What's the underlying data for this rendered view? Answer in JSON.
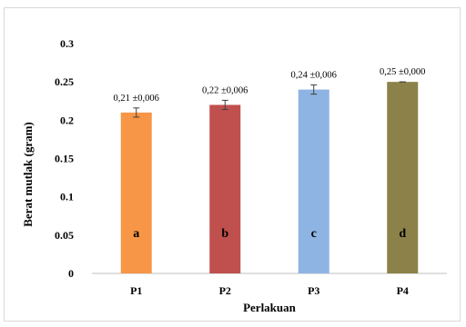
{
  "chart_data": {
    "type": "bar",
    "categories": [
      "P1",
      "P2",
      "P3",
      "P4"
    ],
    "values": [
      0.21,
      0.22,
      0.24,
      0.25
    ],
    "errors": [
      0.006,
      0.006,
      0.006,
      0.0
    ],
    "value_labels": [
      "0,21 ±0,006",
      "0,22 ±0,006",
      "0,24 ±0,006",
      "0,25 ±0,000"
    ],
    "significance_letters": [
      "a",
      "b",
      "c",
      "d"
    ],
    "colors": [
      "#F79646",
      "#C0504D",
      "#8EB4E3",
      "#8C8148"
    ],
    "title": "",
    "xlabel": "Perlakuan",
    "ylabel": "Berat mutlak (gram)",
    "ylim": [
      0,
      0.3
    ],
    "yticks": [
      "0",
      "0.05",
      "0.1",
      "0.15",
      "0.2",
      "0.25",
      "0.3"
    ],
    "grid": false,
    "legend": false
  }
}
